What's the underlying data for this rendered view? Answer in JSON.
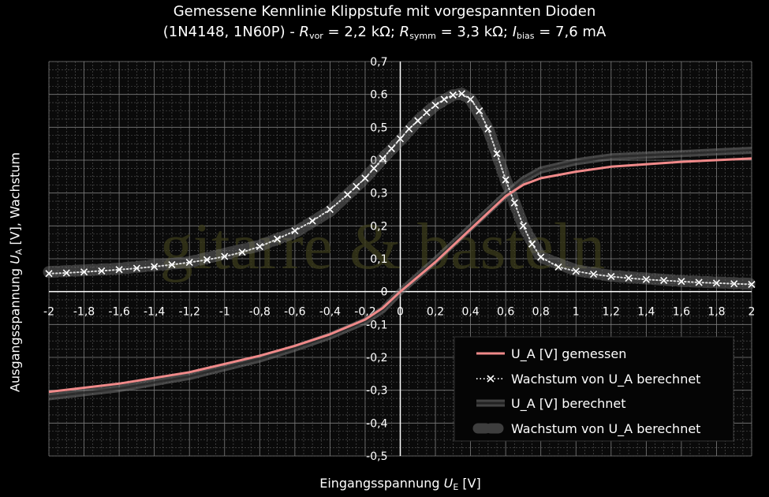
{
  "title": {
    "line1": "Gemessene Kennlinie Klippstufe mit vorgespannten Dioden",
    "line2_prefix": "(1N4148, 1N60P) - ",
    "r_vor_symbol": "R",
    "r_vor_sub": "vor",
    "r_vor_value": " = 2,2 kΩ; ",
    "r_symm_symbol": "R",
    "r_symm_sub": "symm",
    "r_symm_value": " = 3,3 kΩ; ",
    "i_bias_symbol": "I",
    "i_bias_sub": "bias",
    "i_bias_value": " = 7,6 mA"
  },
  "axes": {
    "xlabel_text": "Eingangsspannung ",
    "xlabel_symbol": "U",
    "xlabel_sub": "E",
    "xlabel_unit": " [V]",
    "ylabel_text": "Ausgangsspannung ",
    "ylabel_symbol": "U",
    "ylabel_sub": "A",
    "ylabel_unit": " [V], Wachstum"
  },
  "watermark": "gitarre & basteln",
  "colors": {
    "background": "#000000",
    "grid": "#5a5a5a",
    "measured": "#f08a8a",
    "computed_ua": "#777777",
    "computed_growth": "#777777",
    "growth_marker": "#ffffff"
  },
  "chart_data": {
    "type": "line",
    "xlim": [
      -2,
      2
    ],
    "ylim": [
      -0.5,
      0.7
    ],
    "x_ticks": [
      "-2",
      "-1,8",
      "-1,6",
      "-1,4",
      "-1,2",
      "-1",
      "-0,8",
      "-0,6",
      "-0,4",
      "-0,2",
      "0",
      "0,2",
      "0,4",
      "0,6",
      "0,8",
      "1",
      "1,2",
      "1,4",
      "1,6",
      "1,8",
      "2"
    ],
    "y_ticks": [
      "0,7",
      "0.6",
      "0,5",
      "0,4",
      "0,3",
      "0,2",
      "0,1",
      "0",
      "-0,1",
      "-0,2",
      "-0,3",
      "-0,4",
      "-0,5"
    ],
    "grid": "on",
    "legend_position": "bottom-right",
    "series": [
      {
        "name": "U_A [V] gemessen",
        "x": [
          -2,
          -1.6,
          -1.2,
          -0.8,
          -0.6,
          -0.4,
          -0.2,
          -0.1,
          0,
          0.2,
          0.4,
          0.6,
          0.7,
          0.8,
          1,
          1.2,
          1.6,
          2
        ],
        "y": [
          -0.305,
          -0.28,
          -0.245,
          -0.195,
          -0.165,
          -0.13,
          -0.085,
          -0.05,
          0,
          0.09,
          0.19,
          0.29,
          0.325,
          0.345,
          0.365,
          0.38,
          0.395,
          0.405
        ]
      },
      {
        "name": "Wachstum von U_A berechnet",
        "x": [
          -2,
          -1.9,
          -1.8,
          -1.7,
          -1.6,
          -1.5,
          -1.4,
          -1.3,
          -1.2,
          -1.1,
          -1.0,
          -0.9,
          -0.8,
          -0.7,
          -0.6,
          -0.5,
          -0.4,
          -0.3,
          -0.25,
          -0.2,
          -0.15,
          -0.1,
          -0.05,
          0,
          0.05,
          0.1,
          0.15,
          0.2,
          0.25,
          0.3,
          0.35,
          0.4,
          0.45,
          0.5,
          0.55,
          0.6,
          0.65,
          0.7,
          0.75,
          0.8,
          0.9,
          1.0,
          1.1,
          1.2,
          1.3,
          1.4,
          1.5,
          1.6,
          1.7,
          1.8,
          1.9,
          2.0
        ],
        "y": [
          0.055,
          0.057,
          0.06,
          0.063,
          0.067,
          0.071,
          0.076,
          0.082,
          0.089,
          0.097,
          0.107,
          0.12,
          0.137,
          0.16,
          0.185,
          0.215,
          0.25,
          0.295,
          0.32,
          0.345,
          0.375,
          0.405,
          0.435,
          0.465,
          0.495,
          0.52,
          0.545,
          0.567,
          0.585,
          0.598,
          0.602,
          0.585,
          0.55,
          0.495,
          0.42,
          0.34,
          0.27,
          0.2,
          0.145,
          0.105,
          0.075,
          0.062,
          0.053,
          0.046,
          0.041,
          0.037,
          0.034,
          0.031,
          0.028,
          0.026,
          0.024,
          0.022
        ]
      },
      {
        "name": "U_A [V] berechnet",
        "x": [
          -2,
          -1.6,
          -1.2,
          -0.8,
          -0.6,
          -0.4,
          -0.2,
          -0.1,
          0,
          0.2,
          0.4,
          0.6,
          0.7,
          0.8,
          1,
          1.2,
          1.6,
          2
        ],
        "y": [
          -0.32,
          -0.295,
          -0.258,
          -0.205,
          -0.172,
          -0.135,
          -0.09,
          -0.055,
          0,
          0.095,
          0.195,
          0.295,
          0.34,
          0.37,
          0.395,
          0.41,
          0.42,
          0.43
        ]
      },
      {
        "name": "Wachstum von U_A berechnet",
        "x": [
          -2,
          -1.6,
          -1.2,
          -0.8,
          -0.6,
          -0.4,
          -0.2,
          -0.1,
          0,
          0.1,
          0.2,
          0.3,
          0.35,
          0.4,
          0.5,
          0.6,
          0.7,
          0.8,
          1,
          1.2,
          1.6,
          2
        ],
        "y": [
          0.06,
          0.07,
          0.09,
          0.14,
          0.18,
          0.245,
          0.345,
          0.405,
          0.46,
          0.52,
          0.567,
          0.598,
          0.602,
          0.585,
          0.495,
          0.34,
          0.2,
          0.105,
          0.065,
          0.048,
          0.032,
          0.024
        ]
      }
    ]
  }
}
